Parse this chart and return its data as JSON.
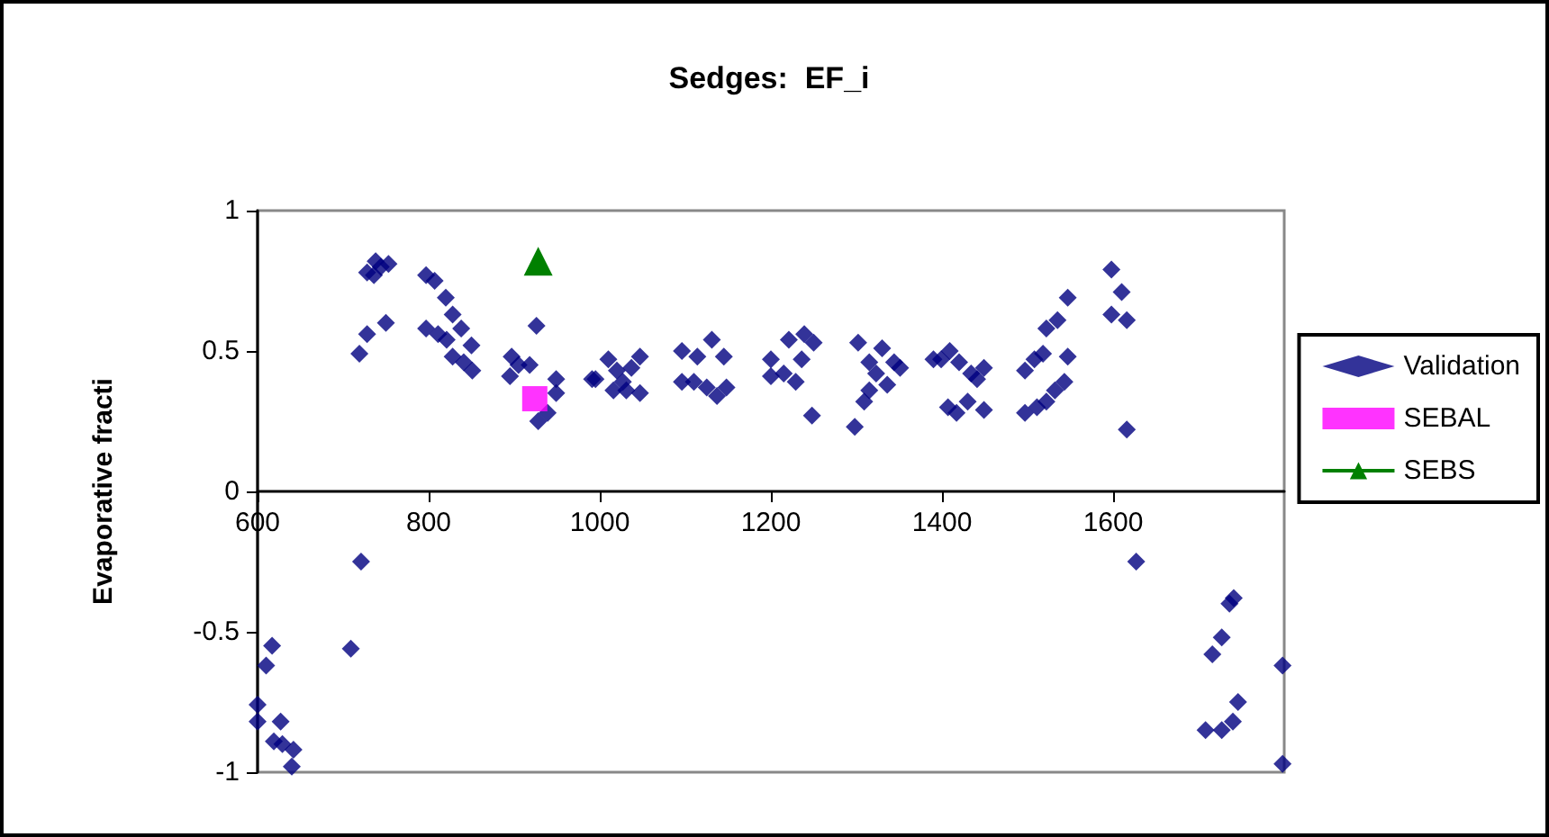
{
  "chart_data": {
    "type": "scatter",
    "title": "Sedges:  EF_i",
    "ylabel": "Evaporative fracti",
    "xlim": [
      600,
      1800
    ],
    "xticks": [
      600,
      800,
      1000,
      1200,
      1400,
      1600
    ],
    "ylim": [
      -1,
      1
    ],
    "yticks": [
      -1,
      -0.5,
      0,
      0.5,
      1
    ],
    "grid": false,
    "legend": "right",
    "series": [
      {
        "name": "Validation",
        "color": "#000080",
        "marker": "diamond",
        "x": [
          719,
          728,
          750,
          728,
          738,
          744,
          753,
          736,
          797,
          807,
          820,
          828,
          838,
          850,
          797,
          811,
          821,
          828,
          841,
          851,
          897,
          905,
          895,
          918,
          926,
          928,
          939,
          949,
          949,
          991,
          721,
          709,
          617,
          610,
          600,
          600,
          627,
          619,
          629,
          642,
          640,
          995,
          1010,
          1020,
          1027,
          1016,
          1047,
          1037,
          1047,
          1031,
          1096,
          1096,
          1114,
          1131,
          1145,
          1110,
          1125,
          1137,
          1148,
          1200,
          1200,
          1221,
          1239,
          1250,
          1236,
          1215,
          1229,
          1248,
          1302,
          1330,
          1315,
          1323,
          1344,
          1336,
          1315,
          1309,
          1298,
          1351,
          1390,
          1399,
          1409,
          1420,
          1434,
          1449,
          1407,
          1417,
          1430,
          1449,
          1441,
          1497,
          1508,
          1518,
          1547,
          1497,
          1511,
          1522,
          1532,
          1543,
          1522,
          1535,
          1547,
          1598,
          1610,
          1598,
          1616,
          1616,
          1627,
          1741,
          1736,
          1727,
          1716,
          1798,
          1746,
          1708,
          1727,
          1740,
          1798
        ],
        "values": [
          0.49,
          0.56,
          0.6,
          0.78,
          0.82,
          0.8,
          0.81,
          0.77,
          0.77,
          0.75,
          0.69,
          0.63,
          0.58,
          0.52,
          0.58,
          0.56,
          0.54,
          0.48,
          0.46,
          0.43,
          0.48,
          0.45,
          0.41,
          0.45,
          0.59,
          0.25,
          0.28,
          0.4,
          0.35,
          0.4,
          -0.25,
          -0.56,
          -0.55,
          -0.62,
          -0.76,
          -0.82,
          -0.82,
          -0.89,
          -0.9,
          -0.92,
          -0.98,
          0.4,
          0.47,
          0.43,
          0.39,
          0.36,
          0.48,
          0.44,
          0.35,
          0.36,
          0.5,
          0.39,
          0.48,
          0.54,
          0.48,
          0.39,
          0.37,
          0.34,
          0.37,
          0.47,
          0.41,
          0.54,
          0.56,
          0.53,
          0.47,
          0.42,
          0.39,
          0.27,
          0.53,
          0.51,
          0.46,
          0.42,
          0.46,
          0.38,
          0.36,
          0.32,
          0.23,
          0.44,
          0.47,
          0.47,
          0.5,
          0.46,
          0.42,
          0.44,
          0.3,
          0.28,
          0.32,
          0.29,
          0.4,
          0.43,
          0.47,
          0.49,
          0.48,
          0.28,
          0.3,
          0.32,
          0.36,
          0.39,
          0.58,
          0.61,
          0.69,
          0.79,
          0.71,
          0.63,
          0.61,
          0.22,
          -0.25,
          -0.38,
          -0.4,
          -0.52,
          -0.58,
          -0.62,
          -0.75,
          -0.85,
          -0.85,
          -0.82,
          -0.97
        ]
      },
      {
        "name": "SEBAL",
        "color": "#ff00ff",
        "marker": "square",
        "x": [
          924
        ],
        "values": [
          0.33
        ]
      },
      {
        "name": "SEBS",
        "type": "line",
        "color": "#008000",
        "marker": "triangle",
        "x": [
          928
        ],
        "values": [
          0.82
        ]
      }
    ]
  }
}
